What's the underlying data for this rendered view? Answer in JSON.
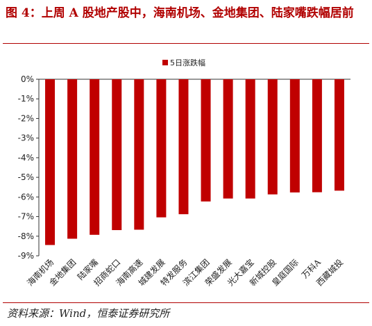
{
  "header": {
    "title": "图 4：上周 A 股地产股中，海南机场、金地集团、陆家嘴跌幅居前"
  },
  "footer": {
    "source": "资料来源：Wind，恒泰证券研究所"
  },
  "colors": {
    "bar": "#c00000",
    "accent": "#b10000"
  },
  "chart_data": {
    "type": "bar",
    "title": "",
    "xlabel": "",
    "ylabel": "",
    "categories": [
      "海南机场",
      "金地集团",
      "陆家嘴",
      "招商蛇口",
      "海南高速",
      "城建发展",
      "特发服务",
      "滨江集团",
      "荣盛发展",
      "光大嘉宝",
      "新城控股",
      "皇庭国际",
      "万科A",
      "西藏城投"
    ],
    "series": [
      {
        "name": "5日涨跌幅",
        "values": [
          -8.45,
          -8.13,
          -7.93,
          -7.69,
          -7.67,
          -7.04,
          -6.88,
          -6.23,
          -6.08,
          -6.08,
          -5.87,
          -5.77,
          -5.76,
          -5.68
        ]
      }
    ],
    "yticks": [
      "0%",
      "-1%",
      "-2%",
      "-3%",
      "-4%",
      "-5%",
      "-6%",
      "-7%",
      "-8%",
      "-9%"
    ],
    "ylim": [
      -9,
      0
    ],
    "grid": false,
    "legend": "top-center"
  }
}
